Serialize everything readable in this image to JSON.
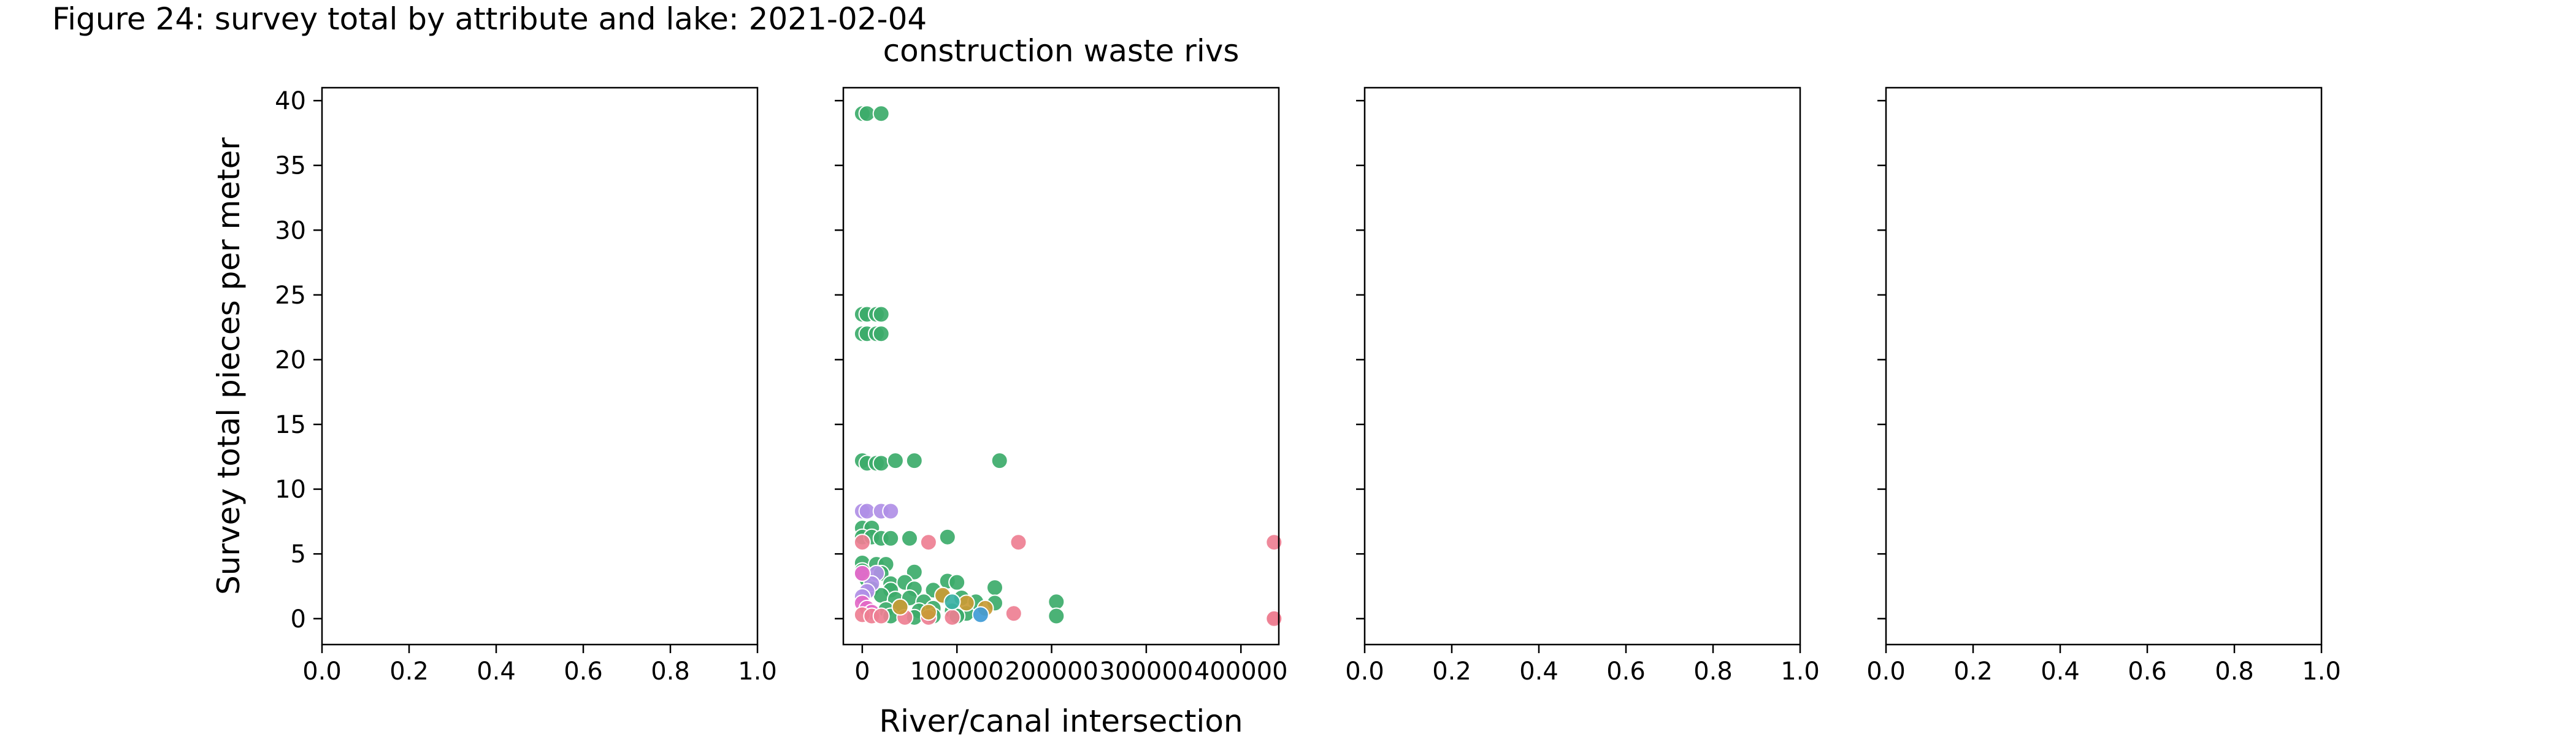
{
  "figure": {
    "title": "Figure 24: survey total by attribute and lake: 2021-02-04"
  },
  "chart_data": [
    {
      "type": "scatter",
      "title": "",
      "xlabel": "",
      "ylabel": "Survey total pieces per meter",
      "xlim": [
        0,
        1
      ],
      "ylim": [
        -2,
        41
      ],
      "xticks": [
        "0.0",
        "0.2",
        "0.4",
        "0.6",
        "0.8",
        "1.0"
      ],
      "yticks": [
        "0",
        "5",
        "10",
        "15",
        "20",
        "25",
        "30",
        "35",
        "40"
      ],
      "show_y_tick_labels": true,
      "grid": false,
      "series": []
    },
    {
      "type": "scatter",
      "title": "construction waste rivs",
      "xlabel": "River/canal intersection",
      "ylabel": "",
      "xlim": [
        -20000,
        440000
      ],
      "ylim": [
        -2,
        41
      ],
      "xticks": [
        "0",
        "100000",
        "200000",
        "300000",
        "400000"
      ],
      "yticks": [
        "0",
        "5",
        "10",
        "15",
        "20",
        "25",
        "30",
        "35",
        "40"
      ],
      "show_y_tick_labels": false,
      "grid": false,
      "colors": {
        "green": "#3cab6a",
        "pink": "#ee7f92",
        "purple": "#b08fe6",
        "magenta": "#e369c6",
        "blue": "#3f9bd6",
        "olive": "#c99b35",
        "teal": "#39b1a5",
        "marker_edge": "#ffffff"
      },
      "series": [
        {
          "color": "green",
          "points": [
            [
              0,
              39
            ],
            [
              5000,
              39
            ],
            [
              20000,
              39
            ],
            [
              0,
              23.5
            ],
            [
              5000,
              23.5
            ],
            [
              15000,
              23.5
            ],
            [
              20000,
              23.5
            ],
            [
              0,
              22
            ],
            [
              5000,
              22
            ],
            [
              15000,
              22
            ],
            [
              20000,
              22
            ],
            [
              0,
              12.2
            ],
            [
              5000,
              12
            ],
            [
              15000,
              12
            ],
            [
              20000,
              12
            ],
            [
              35000,
              12.2
            ],
            [
              55000,
              12.2
            ],
            [
              145000,
              12.2
            ],
            [
              0,
              7
            ],
            [
              10000,
              7
            ],
            [
              0,
              6.3
            ],
            [
              10000,
              6.3
            ],
            [
              20000,
              6.2
            ],
            [
              30000,
              6.2
            ],
            [
              50000,
              6.2
            ],
            [
              90000,
              6.3
            ],
            [
              0,
              4.3
            ],
            [
              15000,
              4.2
            ],
            [
              25000,
              4.2
            ],
            [
              0,
              3.7
            ],
            [
              20000,
              3.5
            ],
            [
              55000,
              3.6
            ],
            [
              5000,
              3
            ],
            [
              30000,
              2.7
            ],
            [
              45000,
              2.8
            ],
            [
              90000,
              2.9
            ],
            [
              100000,
              2.8
            ],
            [
              10000,
              2.3
            ],
            [
              30000,
              2.2
            ],
            [
              55000,
              2.3
            ],
            [
              75000,
              2.2
            ],
            [
              140000,
              2.4
            ],
            [
              20000,
              1.8
            ],
            [
              35000,
              1.5
            ],
            [
              50000,
              1.6
            ],
            [
              65000,
              1.3
            ],
            [
              85000,
              1.7
            ],
            [
              105000,
              1.6
            ],
            [
              120000,
              1.3
            ],
            [
              140000,
              1.2
            ],
            [
              205000,
              1.3
            ],
            [
              25000,
              0.7
            ],
            [
              40000,
              0.9
            ],
            [
              60000,
              0.6
            ],
            [
              75000,
              0.8
            ],
            [
              95000,
              0.6
            ],
            [
              110000,
              0.4
            ],
            [
              30000,
              0.2
            ],
            [
              55000,
              0.1
            ],
            [
              75000,
              0.2
            ],
            [
              100000,
              0.2
            ],
            [
              205000,
              0.2
            ]
          ]
        },
        {
          "color": "purple",
          "points": [
            [
              0,
              8.3
            ],
            [
              5000,
              8.3
            ],
            [
              20000,
              8.3
            ],
            [
              30000,
              8.3
            ],
            [
              0,
              3.5
            ],
            [
              15000,
              3.5
            ],
            [
              10000,
              2.7
            ],
            [
              5000,
              2.1
            ],
            [
              0,
              1.7
            ]
          ]
        },
        {
          "color": "magenta",
          "points": [
            [
              0,
              3.5
            ],
            [
              0,
              1.2
            ],
            [
              5000,
              0.8
            ],
            [
              10000,
              0.5
            ]
          ]
        },
        {
          "color": "pink",
          "points": [
            [
              0,
              5.9
            ],
            [
              70000,
              5.9
            ],
            [
              165000,
              5.9
            ],
            [
              435000,
              5.9
            ],
            [
              0,
              0.3
            ],
            [
              10000,
              0.2
            ],
            [
              20000,
              0.2
            ],
            [
              45000,
              0.1
            ],
            [
              70000,
              0.1
            ],
            [
              95000,
              0.1
            ],
            [
              160000,
              0.4
            ],
            [
              435000,
              0.1
            ],
            [
              435000,
              0.0
            ]
          ]
        },
        {
          "color": "olive",
          "points": [
            [
              85000,
              1.8
            ],
            [
              40000,
              0.9
            ],
            [
              70000,
              0.5
            ],
            [
              110000,
              1.2
            ],
            [
              130000,
              0.8
            ]
          ]
        },
        {
          "color": "blue",
          "points": [
            [
              125000,
              0.3
            ]
          ]
        },
        {
          "color": "teal",
          "points": [
            [
              95000,
              1.3
            ]
          ]
        }
      ]
    },
    {
      "type": "scatter",
      "title": "",
      "xlabel": "",
      "ylabel": "",
      "xlim": [
        0,
        1
      ],
      "ylim": [
        -2,
        41
      ],
      "xticks": [
        "0.0",
        "0.2",
        "0.4",
        "0.6",
        "0.8",
        "1.0"
      ],
      "yticks": [
        "0",
        "5",
        "10",
        "15",
        "20",
        "25",
        "30",
        "35",
        "40"
      ],
      "show_y_tick_labels": false,
      "grid": false,
      "series": []
    },
    {
      "type": "scatter",
      "title": "",
      "xlabel": "",
      "ylabel": "",
      "xlim": [
        0,
        1
      ],
      "ylim": [
        -2,
        41
      ],
      "xticks": [
        "0.0",
        "0.2",
        "0.4",
        "0.6",
        "0.8",
        "1.0"
      ],
      "yticks": [
        "0",
        "5",
        "10",
        "15",
        "20",
        "25",
        "30",
        "35",
        "40"
      ],
      "show_y_tick_labels": false,
      "grid": false,
      "series": []
    }
  ]
}
